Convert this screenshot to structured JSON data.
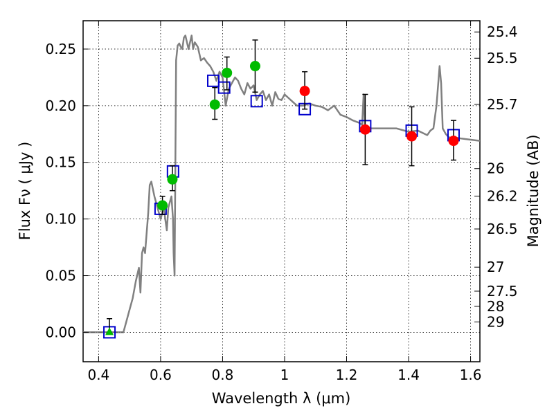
{
  "chart_data": {
    "type": "scatter",
    "title": "",
    "xlabel": "Wavelength  λ (μm)",
    "ylabel_left": "Flux  Fν  ( μJy )",
    "ylabel_right": "Magnitude (AB)",
    "xlim": [
      0.35,
      1.63
    ],
    "ylim": [
      -0.026,
      0.275
    ],
    "x_ticks": [
      0.4,
      0.6,
      0.8,
      1.0,
      1.2,
      1.4,
      1.6
    ],
    "x_tick_labels": [
      "0.4",
      "0.6",
      "0.8",
      "1",
      "1.2",
      "1.4",
      "1.6"
    ],
    "y_ticks": [
      0.0,
      0.05,
      0.1,
      0.15,
      0.2,
      0.25
    ],
    "y_tick_labels": [
      "0.00",
      "0.05",
      "0.10",
      "0.15",
      "0.20",
      "0.25"
    ],
    "magnitude_ticks": [
      {
        "flux": 0.2651,
        "label": "25.4"
      },
      {
        "flux": 0.2419,
        "label": "25.5"
      },
      {
        "flux": 0.2012,
        "label": "25.7"
      },
      {
        "flux": 0.1445,
        "label": "26"
      },
      {
        "flux": 0.1202,
        "label": "26.2"
      },
      {
        "flux": 0.0912,
        "label": "26.5"
      },
      {
        "flux": 0.0575,
        "label": "27"
      },
      {
        "flux": 0.0363,
        "label": "27.5"
      },
      {
        "flux": 0.0229,
        "label": "28"
      },
      {
        "flux": 0.0091,
        "label": "29"
      }
    ],
    "grid": true,
    "colors": {
      "model": "#808080",
      "green": "#00bb00",
      "red": "#ff0000",
      "square": "#0000cc",
      "errorbar": "#000000"
    },
    "model_spectrum": {
      "x": [
        0.35,
        0.48,
        0.49,
        0.5,
        0.51,
        0.52,
        0.53,
        0.535,
        0.54,
        0.545,
        0.55,
        0.56,
        0.565,
        0.57,
        0.58,
        0.59,
        0.6,
        0.605,
        0.61,
        0.615,
        0.62,
        0.625,
        0.63,
        0.635,
        0.64,
        0.642,
        0.645,
        0.65,
        0.655,
        0.66,
        0.665,
        0.67,
        0.675,
        0.68,
        0.69,
        0.7,
        0.705,
        0.71,
        0.72,
        0.73,
        0.74,
        0.75,
        0.76,
        0.77,
        0.78,
        0.79,
        0.8,
        0.81,
        0.82,
        0.83,
        0.84,
        0.85,
        0.86,
        0.87,
        0.88,
        0.89,
        0.9,
        0.91,
        0.92,
        0.93,
        0.94,
        0.95,
        0.96,
        0.97,
        0.98,
        0.99,
        1.0,
        1.02,
        1.04,
        1.06,
        1.08,
        1.1,
        1.12,
        1.14,
        1.16,
        1.18,
        1.2,
        1.22,
        1.24,
        1.25,
        1.255,
        1.26,
        1.27,
        1.3,
        1.33,
        1.36,
        1.4,
        1.43,
        1.46,
        1.47,
        1.48,
        1.49,
        1.5,
        1.505,
        1.51,
        1.52,
        1.53,
        1.55,
        1.57,
        1.6,
        1.63
      ],
      "y": [
        0.0,
        0.0,
        0.01,
        0.02,
        0.03,
        0.045,
        0.057,
        0.035,
        0.07,
        0.075,
        0.07,
        0.105,
        0.13,
        0.133,
        0.12,
        0.11,
        0.1,
        0.105,
        0.112,
        0.1,
        0.09,
        0.11,
        0.115,
        0.12,
        0.1,
        0.07,
        0.05,
        0.24,
        0.253,
        0.255,
        0.252,
        0.25,
        0.26,
        0.262,
        0.25,
        0.262,
        0.25,
        0.256,
        0.252,
        0.24,
        0.242,
        0.238,
        0.235,
        0.23,
        0.222,
        0.23,
        0.225,
        0.2,
        0.215,
        0.22,
        0.225,
        0.222,
        0.215,
        0.21,
        0.22,
        0.215,
        0.218,
        0.205,
        0.21,
        0.213,
        0.205,
        0.21,
        0.2,
        0.212,
        0.206,
        0.205,
        0.21,
        0.205,
        0.2,
        0.2,
        0.202,
        0.2,
        0.199,
        0.196,
        0.2,
        0.192,
        0.19,
        0.187,
        0.185,
        0.183,
        0.21,
        0.175,
        0.18,
        0.18,
        0.18,
        0.18,
        0.177,
        0.178,
        0.174,
        0.178,
        0.18,
        0.2,
        0.235,
        0.22,
        0.18,
        0.175,
        0.172,
        0.172,
        0.171,
        0.17,
        0.169
      ]
    },
    "series": [
      {
        "marker": "triangle",
        "color": "#00bb00",
        "points": [
          {
            "x": 0.435,
            "y": 0.0,
            "err": [
              0.0,
              0.012
            ]
          }
        ]
      },
      {
        "marker": "circle",
        "color": "#00bb00",
        "points": [
          {
            "x": 0.606,
            "y": 0.112,
            "err": [
              0.104,
              0.12
            ]
          },
          {
            "x": 0.638,
            "y": 0.135,
            "err": [
              0.125,
              0.147
            ]
          },
          {
            "x": 0.775,
            "y": 0.201,
            "err": [
              0.188,
              0.216
            ]
          },
          {
            "x": 0.814,
            "y": 0.229,
            "err": [
              0.214,
              0.243
            ]
          },
          {
            "x": 0.905,
            "y": 0.235,
            "err": [
              0.212,
              0.258
            ]
          }
        ]
      },
      {
        "marker": "circle",
        "color": "#ff0000",
        "points": [
          {
            "x": 1.065,
            "y": 0.213,
            "err": [
              0.197,
              0.23
            ]
          },
          {
            "x": 1.26,
            "y": 0.179,
            "err": [
              0.148,
              0.21
            ]
          },
          {
            "x": 1.41,
            "y": 0.173,
            "err": [
              0.147,
              0.199
            ]
          },
          {
            "x": 1.545,
            "y": 0.169,
            "err": [
              0.152,
              0.187
            ]
          }
        ]
      },
      {
        "marker": "square",
        "color": "#0000cc",
        "points": [
          {
            "x": 0.435,
            "y": 0.0
          },
          {
            "x": 0.6,
            "y": 0.109
          },
          {
            "x": 0.64,
            "y": 0.142
          },
          {
            "x": 0.77,
            "y": 0.222
          },
          {
            "x": 0.805,
            "y": 0.216
          },
          {
            "x": 0.91,
            "y": 0.204
          },
          {
            "x": 1.065,
            "y": 0.197
          },
          {
            "x": 1.26,
            "y": 0.182
          },
          {
            "x": 1.41,
            "y": 0.178
          },
          {
            "x": 1.545,
            "y": 0.174
          }
        ]
      }
    ]
  }
}
